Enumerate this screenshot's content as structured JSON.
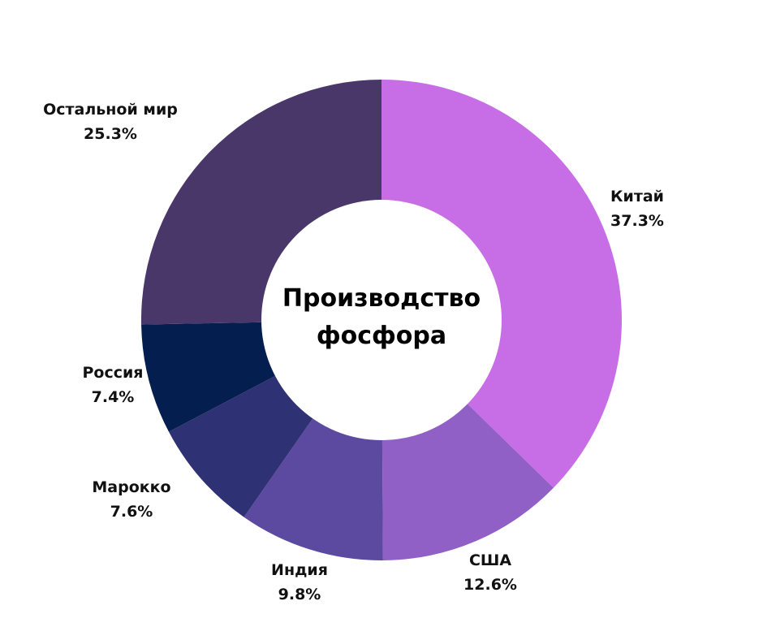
{
  "chart_data": {
    "type": "pie",
    "title_lines": [
      "Производство",
      "фосфора"
    ],
    "donut": true,
    "slices": [
      {
        "label": "Китай",
        "value": 37.3,
        "display": "37.3%",
        "color": "#c76ee6"
      },
      {
        "label": "США",
        "value": 12.6,
        "display": "12.6%",
        "color": "#9060c6"
      },
      {
        "label": "Индия",
        "value": 9.8,
        "display": "9.8%",
        "color": "#5b4aa0"
      },
      {
        "label": "Марокко",
        "value": 7.6,
        "display": "7.6%",
        "color": "#2e3275"
      },
      {
        "label": "Россия",
        "value": 7.4,
        "display": "7.4%",
        "color": "#031e4f"
      },
      {
        "label": "Остальной мир",
        "value": 25.3,
        "display": "25.3%",
        "color": "#4a376a"
      }
    ]
  }
}
